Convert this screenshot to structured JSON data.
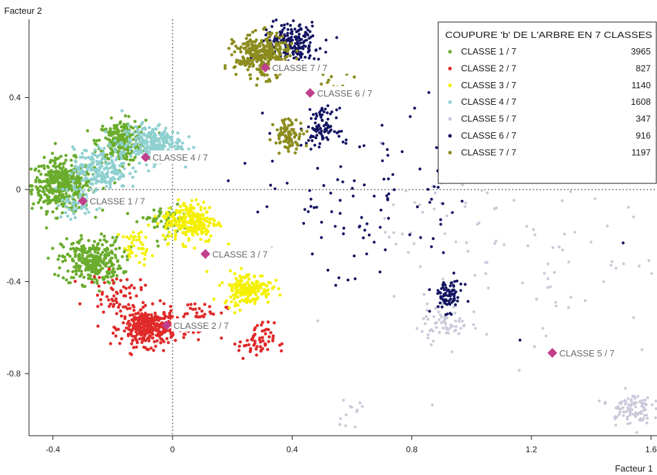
{
  "chart_data": {
    "type": "scatter",
    "title": "",
    "xlabel": "Facteur 1",
    "ylabel": "Facteur 2",
    "xlim": [
      -0.48,
      1.62
    ],
    "ylim": [
      -1.07,
      0.74
    ],
    "x_ticks": [
      {
        "value": -0.4,
        "label": "-0.4"
      },
      {
        "value": 0,
        "label": "0"
      },
      {
        "value": 0.4,
        "label": "0.4"
      },
      {
        "value": 0.8,
        "label": "0.8"
      },
      {
        "value": 1.2,
        "label": "1.2"
      },
      {
        "value": 1.6,
        "label": "1.6"
      }
    ],
    "y_ticks": [
      {
        "value": 0.4,
        "label": "0.4"
      },
      {
        "value": 0,
        "label": "0"
      },
      {
        "value": -0.4,
        "label": "-0.4"
      },
      {
        "value": -0.8,
        "label": "-0.8"
      }
    ],
    "reference_lines": {
      "x": 0,
      "y": 0,
      "style": "dotted"
    },
    "legend": {
      "title": "COUPURE 'b' DE L'ARBRE EN  7 CLASSES",
      "placement": "top-right"
    },
    "series": [
      {
        "name": "CLASSE  1 / 7",
        "count": "3965",
        "color": "#6aac2c",
        "centroid": {
          "x": -0.3,
          "y": -0.05,
          "label": "CLASSE  1 / 7"
        },
        "clusters": [
          {
            "cx": -0.37,
            "cy": 0.02,
            "sx": 0.05,
            "sy": 0.055,
            "n": 420
          },
          {
            "cx": -0.17,
            "cy": 0.21,
            "sx": 0.04,
            "sy": 0.045,
            "n": 260
          },
          {
            "cx": -0.27,
            "cy": -0.31,
            "sx": 0.05,
            "sy": 0.05,
            "n": 300
          },
          {
            "cx": -0.03,
            "cy": -0.12,
            "sx": 0.04,
            "sy": 0.04,
            "n": 60
          }
        ]
      },
      {
        "name": "CLASSE  2 / 7",
        "count": "827",
        "color": "#e02a2a",
        "centroid": {
          "x": -0.02,
          "y": -0.59,
          "label": "CLASSE  2 / 7"
        },
        "clusters": [
          {
            "cx": -0.08,
            "cy": -0.6,
            "sx": 0.045,
            "sy": 0.04,
            "n": 340
          },
          {
            "cx": -0.19,
            "cy": -0.45,
            "sx": 0.045,
            "sy": 0.04,
            "n": 60
          },
          {
            "cx": 0.08,
            "cy": -0.56,
            "sx": 0.05,
            "sy": 0.04,
            "n": 60
          },
          {
            "cx": 0.28,
            "cy": -0.66,
            "sx": 0.03,
            "sy": 0.04,
            "n": 60
          }
        ]
      },
      {
        "name": "CLASSE  3 / 7",
        "count": "1140",
        "color": "#f4f000",
        "centroid": {
          "x": 0.11,
          "y": -0.28,
          "label": "CLASSE  3 / 7"
        },
        "clusters": [
          {
            "cx": 0.06,
            "cy": -0.14,
            "sx": 0.045,
            "sy": 0.045,
            "n": 240
          },
          {
            "cx": 0.25,
            "cy": -0.43,
            "sx": 0.04,
            "sy": 0.035,
            "n": 180
          },
          {
            "cx": -0.12,
            "cy": -0.25,
            "sx": 0.025,
            "sy": 0.035,
            "n": 40
          }
        ]
      },
      {
        "name": "CLASSE  4 / 7",
        "count": "1608",
        "color": "#8fd0d0",
        "centroid": {
          "x": -0.09,
          "y": 0.14,
          "label": "CLASSE  4 / 7"
        },
        "clusters": [
          {
            "cx": -0.07,
            "cy": 0.2,
            "sx": 0.05,
            "sy": 0.04,
            "n": 260
          },
          {
            "cx": -0.24,
            "cy": 0.09,
            "sx": 0.045,
            "sy": 0.045,
            "n": 200
          },
          {
            "cx": -0.31,
            "cy": -0.05,
            "sx": 0.04,
            "sy": 0.04,
            "n": 60
          }
        ]
      },
      {
        "name": "CLASSE  5 / 7",
        "count": "347",
        "color": "#c9c9da",
        "centroid": {
          "x": 1.27,
          "y": -0.71,
          "label": "CLASSE  5 / 7"
        },
        "clusters": [
          {
            "cx": 1.53,
            "cy": -0.95,
            "sx": 0.035,
            "sy": 0.035,
            "n": 90
          },
          {
            "cx": 0.91,
            "cy": -0.58,
            "sx": 0.04,
            "sy": 0.04,
            "n": 60
          },
          {
            "cx": 1.2,
            "cy": -0.35,
            "sx": 0.25,
            "sy": 0.25,
            "n": 90
          },
          {
            "cx": 0.6,
            "cy": -0.95,
            "sx": 0.03,
            "sy": 0.03,
            "n": 12
          },
          {
            "cx": 0.95,
            "cy": -0.1,
            "sx": 0.12,
            "sy": 0.1,
            "n": 20
          }
        ]
      },
      {
        "name": "CLASSE  6 / 7",
        "count": "916",
        "color": "#141463",
        "centroid": {
          "x": 0.46,
          "y": 0.42,
          "label": "CLASSE  6 / 7"
        },
        "clusters": [
          {
            "cx": 0.4,
            "cy": 0.63,
            "sx": 0.05,
            "sy": 0.05,
            "n": 220
          },
          {
            "cx": 0.5,
            "cy": 0.27,
            "sx": 0.025,
            "sy": 0.04,
            "n": 90
          },
          {
            "cx": 0.92,
            "cy": -0.46,
            "sx": 0.025,
            "sy": 0.035,
            "n": 80
          },
          {
            "cx": 0.65,
            "cy": -0.05,
            "sx": 0.2,
            "sy": 0.2,
            "n": 110
          }
        ]
      },
      {
        "name": "CLASSE  7 / 7",
        "count": "1197",
        "color": "#8c8c1e",
        "centroid": {
          "x": 0.31,
          "y": 0.53,
          "label": "CLASSE  7 / 7"
        },
        "clusters": [
          {
            "cx": 0.3,
            "cy": 0.58,
            "sx": 0.045,
            "sy": 0.045,
            "n": 320
          },
          {
            "cx": 0.39,
            "cy": 0.24,
            "sx": 0.025,
            "sy": 0.035,
            "n": 90
          },
          {
            "cx": 0.55,
            "cy": 0.48,
            "sx": 0.04,
            "sy": 0.04,
            "n": 15
          }
        ]
      }
    ]
  }
}
